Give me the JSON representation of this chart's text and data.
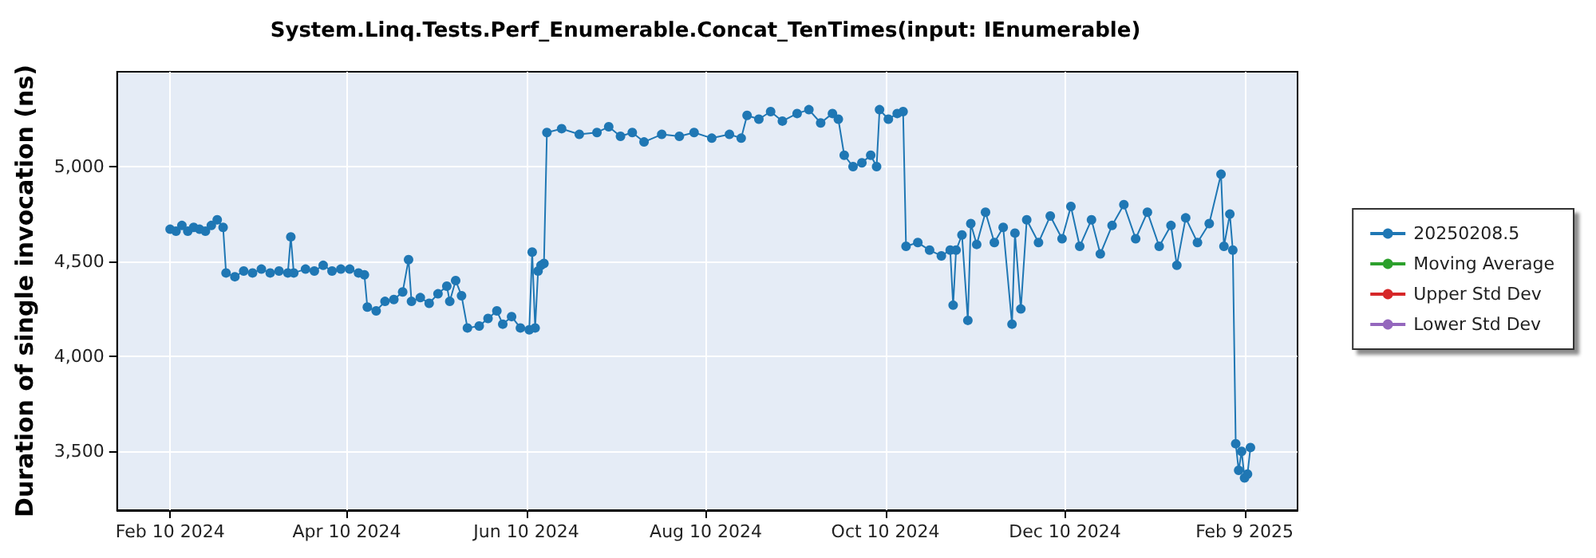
{
  "chart_data": {
    "type": "line",
    "title": "System.Linq.Tests.Perf_Enumerable.Concat_TenTimes(input: IEnumerable)",
    "ylabel": "Duration of single invocation (ns)",
    "xlim": [
      "2024-01-23",
      "2025-02-27"
    ],
    "xticks": [
      {
        "value": "2024-02-10",
        "label": "Feb 10 2024"
      },
      {
        "value": "2024-04-10",
        "label": "Apr 10 2024"
      },
      {
        "value": "2024-06-10",
        "label": "Jun 10 2024"
      },
      {
        "value": "2024-08-10",
        "label": "Aug 10 2024"
      },
      {
        "value": "2024-10-10",
        "label": "Oct 10 2024"
      },
      {
        "value": "2024-12-10",
        "label": "Dec 10 2024"
      },
      {
        "value": "2025-02-09",
        "label": "Feb 9 2025"
      }
    ],
    "ylim": [
      3190,
      5500
    ],
    "yticks": [
      {
        "value": 3500,
        "label": "3,500"
      },
      {
        "value": 4000,
        "label": "4,000"
      },
      {
        "value": 4500,
        "label": "4,500"
      },
      {
        "value": 5000,
        "label": "5,000"
      }
    ],
    "grid": true,
    "legend": "right",
    "marker": "circle",
    "line_style": "solid",
    "series": [
      {
        "name": "20250208.5",
        "color": "#1f77b4",
        "x": [
          "2024-02-10",
          "2024-02-12",
          "2024-02-14",
          "2024-02-16",
          "2024-02-18",
          "2024-02-20",
          "2024-02-22",
          "2024-02-24",
          "2024-02-26",
          "2024-02-28",
          "2024-02-29",
          "2024-03-03",
          "2024-03-06",
          "2024-03-09",
          "2024-03-12",
          "2024-03-15",
          "2024-03-18",
          "2024-03-21",
          "2024-03-22",
          "2024-03-23",
          "2024-03-27",
          "2024-03-30",
          "2024-04-02",
          "2024-04-05",
          "2024-04-08",
          "2024-04-11",
          "2024-04-14",
          "2024-04-16",
          "2024-04-17",
          "2024-04-20",
          "2024-04-23",
          "2024-04-26",
          "2024-04-29",
          "2024-05-01",
          "2024-05-02",
          "2024-05-05",
          "2024-05-08",
          "2024-05-11",
          "2024-05-14",
          "2024-05-15",
          "2024-05-17",
          "2024-05-19",
          "2024-05-21",
          "2024-05-25",
          "2024-05-28",
          "2024-05-31",
          "2024-06-02",
          "2024-06-05",
          "2024-06-08",
          "2024-06-11",
          "2024-06-12",
          "2024-06-13",
          "2024-06-14",
          "2024-06-15",
          "2024-06-16",
          "2024-06-17",
          "2024-06-22",
          "2024-06-28",
          "2024-07-04",
          "2024-07-08",
          "2024-07-12",
          "2024-07-16",
          "2024-07-20",
          "2024-07-26",
          "2024-08-01",
          "2024-08-06",
          "2024-08-12",
          "2024-08-18",
          "2024-08-22",
          "2024-08-24",
          "2024-08-28",
          "2024-09-01",
          "2024-09-05",
          "2024-09-10",
          "2024-09-14",
          "2024-09-18",
          "2024-09-22",
          "2024-09-24",
          "2024-09-26",
          "2024-09-29",
          "2024-10-02",
          "2024-10-05",
          "2024-10-07",
          "2024-10-08",
          "2024-10-11",
          "2024-10-14",
          "2024-10-16",
          "2024-10-17",
          "2024-10-21",
          "2024-10-25",
          "2024-10-29",
          "2024-11-01",
          "2024-11-02",
          "2024-11-03",
          "2024-11-05",
          "2024-11-07",
          "2024-11-08",
          "2024-11-10",
          "2024-11-13",
          "2024-11-16",
          "2024-11-19",
          "2024-11-22",
          "2024-11-23",
          "2024-11-25",
          "2024-11-27",
          "2024-12-01",
          "2024-12-05",
          "2024-12-09",
          "2024-12-12",
          "2024-12-15",
          "2024-12-19",
          "2024-12-22",
          "2024-12-26",
          "2024-12-30",
          "2025-01-03",
          "2025-01-07",
          "2025-01-11",
          "2025-01-15",
          "2025-01-17",
          "2025-01-20",
          "2025-01-24",
          "2025-01-28",
          "2025-02-01",
          "2025-02-02",
          "2025-02-04",
          "2025-02-05",
          "2025-02-06",
          "2025-02-07",
          "2025-02-08",
          "2025-02-09",
          "2025-02-10",
          "2025-02-11"
        ],
        "values": [
          4670,
          4660,
          4690,
          4660,
          4680,
          4670,
          4660,
          4690,
          4720,
          4680,
          4440,
          4420,
          4450,
          4440,
          4460,
          4440,
          4450,
          4440,
          4630,
          4440,
          4460,
          4450,
          4480,
          4450,
          4460,
          4460,
          4440,
          4430,
          4260,
          4240,
          4290,
          4300,
          4340,
          4510,
          4290,
          4310,
          4280,
          4330,
          4370,
          4290,
          4400,
          4320,
          4150,
          4160,
          4200,
          4240,
          4170,
          4210,
          4150,
          4140,
          4550,
          4150,
          4450,
          4480,
          4490,
          5180,
          5200,
          5170,
          5180,
          5210,
          5160,
          5180,
          5130,
          5170,
          5160,
          5180,
          5150,
          5170,
          5150,
          5270,
          5250,
          5290,
          5240,
          5280,
          5300,
          5230,
          5280,
          5250,
          5060,
          5000,
          5020,
          5060,
          5000,
          5300,
          5250,
          5280,
          5290,
          4580,
          4600,
          4560,
          4530,
          4560,
          4270,
          4560,
          4640,
          4190,
          4700,
          4590,
          4760,
          4600,
          4680,
          4170,
          4650,
          4250,
          4720,
          4600,
          4740,
          4620,
          4790,
          4580,
          4720,
          4540,
          4690,
          4800,
          4620,
          4760,
          4580,
          4690,
          4480,
          4730,
          4600,
          4700,
          4960,
          4580,
          4750,
          4560,
          3540,
          3400,
          3500,
          3360,
          3380,
          3520
        ]
      },
      {
        "name": "Moving Average",
        "color": "#2ca02c"
      },
      {
        "name": "Upper Std Dev",
        "color": "#d62728"
      },
      {
        "name": "Lower Std Dev",
        "color": "#9467bd"
      }
    ]
  }
}
